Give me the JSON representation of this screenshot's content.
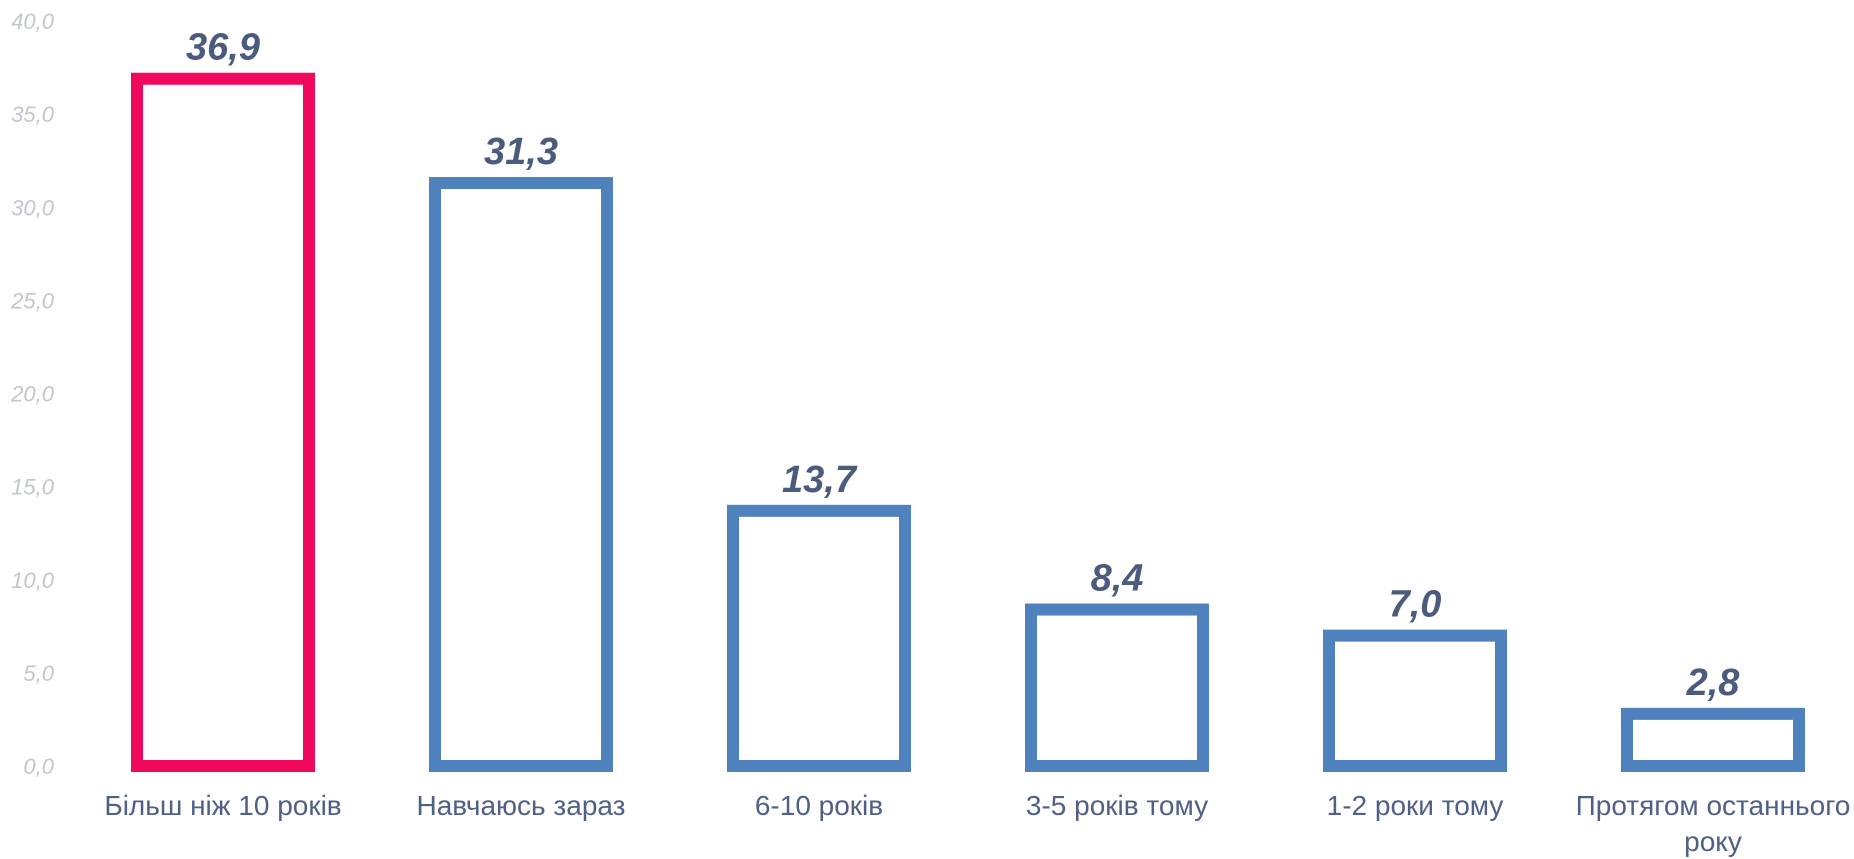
{
  "chart_data": {
    "type": "bar",
    "categories": [
      "Більш ніж 10 років",
      "Навчаюсь зараз",
      "6-10 років",
      "3-5 років тому",
      "1-2 роки тому",
      [
        "Протягом останнього",
        "року"
      ]
    ],
    "values": [
      36.9,
      31.3,
      13.7,
      8.4,
      7.0,
      2.8
    ],
    "value_labels": [
      "36,9",
      "31,3",
      "13,7",
      "8,4",
      "7,0",
      "2,8"
    ],
    "ylim": [
      0,
      40
    ],
    "yticks": [
      0,
      5,
      10,
      15,
      20,
      25,
      30,
      35,
      40
    ],
    "ytick_labels": [
      "0,0",
      "5,0",
      "10,0",
      "15,0",
      "20,0",
      "25,0",
      "30,0",
      "35,0",
      "40,0"
    ],
    "grid": false,
    "highlight_index": 0,
    "colors": {
      "highlight": "#f0085c",
      "bar": "#4f81bd",
      "data_label": "#4b5b7d",
      "axis_tick": "#c3c6cf",
      "category_label": "#4f5f86"
    }
  }
}
